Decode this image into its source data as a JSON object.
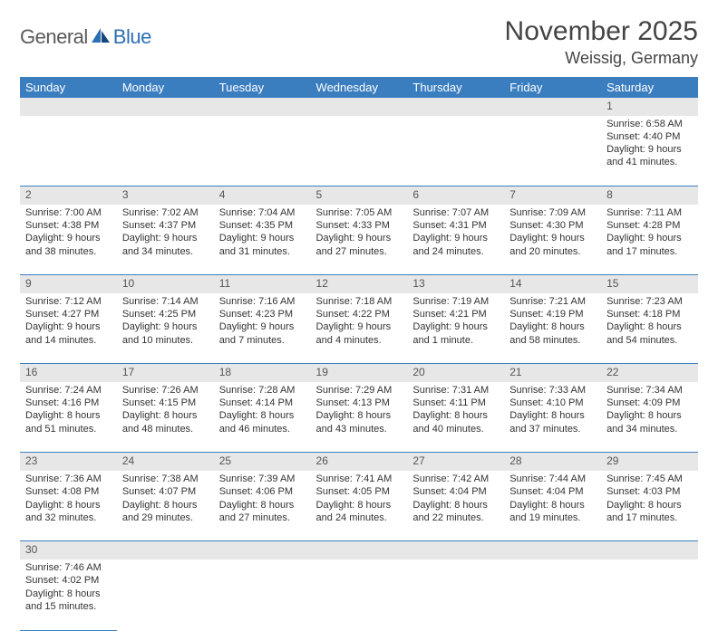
{
  "logo": {
    "part1": "General",
    "part2": "Blue"
  },
  "title": "November 2025",
  "location": "Weissig, Germany",
  "colors": {
    "header_bg": "#3b7ec0",
    "header_text": "#ffffff",
    "daynum_bg": "#e7e7e7",
    "cell_border": "#3b7ec0",
    "logo_gray": "#5a5a5a",
    "logo_blue": "#2d6fb3",
    "body_text": "#333333"
  },
  "weekdays": [
    "Sunday",
    "Monday",
    "Tuesday",
    "Wednesday",
    "Thursday",
    "Friday",
    "Saturday"
  ],
  "weeks": [
    {
      "nums": [
        "",
        "",
        "",
        "",
        "",
        "",
        "1"
      ],
      "cells": [
        null,
        null,
        null,
        null,
        null,
        null,
        {
          "sunrise": "Sunrise: 6:58 AM",
          "sunset": "Sunset: 4:40 PM",
          "day1": "Daylight: 9 hours",
          "day2": "and 41 minutes."
        }
      ]
    },
    {
      "nums": [
        "2",
        "3",
        "4",
        "5",
        "6",
        "7",
        "8"
      ],
      "cells": [
        {
          "sunrise": "Sunrise: 7:00 AM",
          "sunset": "Sunset: 4:38 PM",
          "day1": "Daylight: 9 hours",
          "day2": "and 38 minutes."
        },
        {
          "sunrise": "Sunrise: 7:02 AM",
          "sunset": "Sunset: 4:37 PM",
          "day1": "Daylight: 9 hours",
          "day2": "and 34 minutes."
        },
        {
          "sunrise": "Sunrise: 7:04 AM",
          "sunset": "Sunset: 4:35 PM",
          "day1": "Daylight: 9 hours",
          "day2": "and 31 minutes."
        },
        {
          "sunrise": "Sunrise: 7:05 AM",
          "sunset": "Sunset: 4:33 PM",
          "day1": "Daylight: 9 hours",
          "day2": "and 27 minutes."
        },
        {
          "sunrise": "Sunrise: 7:07 AM",
          "sunset": "Sunset: 4:31 PM",
          "day1": "Daylight: 9 hours",
          "day2": "and 24 minutes."
        },
        {
          "sunrise": "Sunrise: 7:09 AM",
          "sunset": "Sunset: 4:30 PM",
          "day1": "Daylight: 9 hours",
          "day2": "and 20 minutes."
        },
        {
          "sunrise": "Sunrise: 7:11 AM",
          "sunset": "Sunset: 4:28 PM",
          "day1": "Daylight: 9 hours",
          "day2": "and 17 minutes."
        }
      ]
    },
    {
      "nums": [
        "9",
        "10",
        "11",
        "12",
        "13",
        "14",
        "15"
      ],
      "cells": [
        {
          "sunrise": "Sunrise: 7:12 AM",
          "sunset": "Sunset: 4:27 PM",
          "day1": "Daylight: 9 hours",
          "day2": "and 14 minutes."
        },
        {
          "sunrise": "Sunrise: 7:14 AM",
          "sunset": "Sunset: 4:25 PM",
          "day1": "Daylight: 9 hours",
          "day2": "and 10 minutes."
        },
        {
          "sunrise": "Sunrise: 7:16 AM",
          "sunset": "Sunset: 4:23 PM",
          "day1": "Daylight: 9 hours",
          "day2": "and 7 minutes."
        },
        {
          "sunrise": "Sunrise: 7:18 AM",
          "sunset": "Sunset: 4:22 PM",
          "day1": "Daylight: 9 hours",
          "day2": "and 4 minutes."
        },
        {
          "sunrise": "Sunrise: 7:19 AM",
          "sunset": "Sunset: 4:21 PM",
          "day1": "Daylight: 9 hours",
          "day2": "and 1 minute."
        },
        {
          "sunrise": "Sunrise: 7:21 AM",
          "sunset": "Sunset: 4:19 PM",
          "day1": "Daylight: 8 hours",
          "day2": "and 58 minutes."
        },
        {
          "sunrise": "Sunrise: 7:23 AM",
          "sunset": "Sunset: 4:18 PM",
          "day1": "Daylight: 8 hours",
          "day2": "and 54 minutes."
        }
      ]
    },
    {
      "nums": [
        "16",
        "17",
        "18",
        "19",
        "20",
        "21",
        "22"
      ],
      "cells": [
        {
          "sunrise": "Sunrise: 7:24 AM",
          "sunset": "Sunset: 4:16 PM",
          "day1": "Daylight: 8 hours",
          "day2": "and 51 minutes."
        },
        {
          "sunrise": "Sunrise: 7:26 AM",
          "sunset": "Sunset: 4:15 PM",
          "day1": "Daylight: 8 hours",
          "day2": "and 48 minutes."
        },
        {
          "sunrise": "Sunrise: 7:28 AM",
          "sunset": "Sunset: 4:14 PM",
          "day1": "Daylight: 8 hours",
          "day2": "and 46 minutes."
        },
        {
          "sunrise": "Sunrise: 7:29 AM",
          "sunset": "Sunset: 4:13 PM",
          "day1": "Daylight: 8 hours",
          "day2": "and 43 minutes."
        },
        {
          "sunrise": "Sunrise: 7:31 AM",
          "sunset": "Sunset: 4:11 PM",
          "day1": "Daylight: 8 hours",
          "day2": "and 40 minutes."
        },
        {
          "sunrise": "Sunrise: 7:33 AM",
          "sunset": "Sunset: 4:10 PM",
          "day1": "Daylight: 8 hours",
          "day2": "and 37 minutes."
        },
        {
          "sunrise": "Sunrise: 7:34 AM",
          "sunset": "Sunset: 4:09 PM",
          "day1": "Daylight: 8 hours",
          "day2": "and 34 minutes."
        }
      ]
    },
    {
      "nums": [
        "23",
        "24",
        "25",
        "26",
        "27",
        "28",
        "29"
      ],
      "cells": [
        {
          "sunrise": "Sunrise: 7:36 AM",
          "sunset": "Sunset: 4:08 PM",
          "day1": "Daylight: 8 hours",
          "day2": "and 32 minutes."
        },
        {
          "sunrise": "Sunrise: 7:38 AM",
          "sunset": "Sunset: 4:07 PM",
          "day1": "Daylight: 8 hours",
          "day2": "and 29 minutes."
        },
        {
          "sunrise": "Sunrise: 7:39 AM",
          "sunset": "Sunset: 4:06 PM",
          "day1": "Daylight: 8 hours",
          "day2": "and 27 minutes."
        },
        {
          "sunrise": "Sunrise: 7:41 AM",
          "sunset": "Sunset: 4:05 PM",
          "day1": "Daylight: 8 hours",
          "day2": "and 24 minutes."
        },
        {
          "sunrise": "Sunrise: 7:42 AM",
          "sunset": "Sunset: 4:04 PM",
          "day1": "Daylight: 8 hours",
          "day2": "and 22 minutes."
        },
        {
          "sunrise": "Sunrise: 7:44 AM",
          "sunset": "Sunset: 4:04 PM",
          "day1": "Daylight: 8 hours",
          "day2": "and 19 minutes."
        },
        {
          "sunrise": "Sunrise: 7:45 AM",
          "sunset": "Sunset: 4:03 PM",
          "day1": "Daylight: 8 hours",
          "day2": "and 17 minutes."
        }
      ]
    },
    {
      "nums": [
        "30",
        "",
        "",
        "",
        "",
        "",
        ""
      ],
      "cells": [
        {
          "sunrise": "Sunrise: 7:46 AM",
          "sunset": "Sunset: 4:02 PM",
          "day1": "Daylight: 8 hours",
          "day2": "and 15 minutes."
        },
        null,
        null,
        null,
        null,
        null,
        null
      ]
    }
  ]
}
